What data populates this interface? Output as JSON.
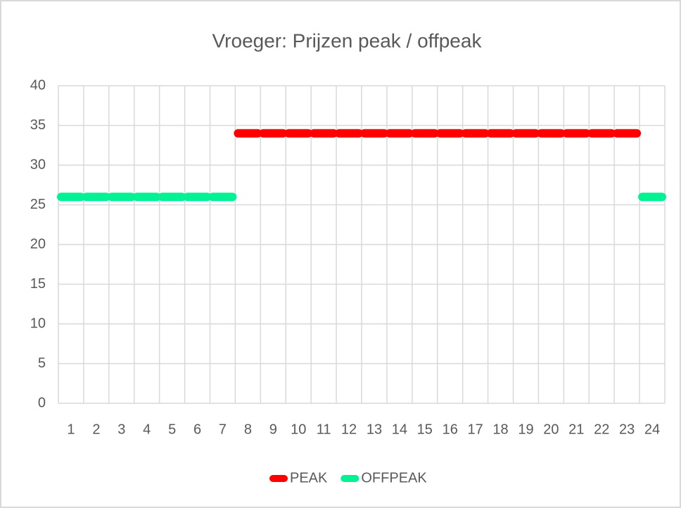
{
  "chart_data": {
    "type": "line",
    "title": "Vroeger: Prijzen peak / offpeak",
    "categories": [
      "1",
      "2",
      "3",
      "4",
      "5",
      "6",
      "7",
      "8",
      "9",
      "10",
      "11",
      "12",
      "13",
      "14",
      "15",
      "16",
      "17",
      "18",
      "19",
      "20",
      "21",
      "22",
      "23",
      "24"
    ],
    "series": [
      {
        "name": "PEAK",
        "color": "#ff0000",
        "values": [
          null,
          null,
          null,
          null,
          null,
          null,
          null,
          34,
          34,
          34,
          34,
          34,
          34,
          34,
          34,
          34,
          34,
          34,
          34,
          34,
          34,
          34,
          34,
          null
        ]
      },
      {
        "name": "OFFPEAK",
        "color": "#00f294",
        "values": [
          26,
          26,
          26,
          26,
          26,
          26,
          26,
          null,
          null,
          null,
          null,
          null,
          null,
          null,
          null,
          null,
          null,
          null,
          null,
          null,
          null,
          null,
          null,
          26
        ]
      }
    ],
    "ylim": [
      0,
      40
    ],
    "yticks": [
      0,
      5,
      10,
      15,
      20,
      25,
      30,
      35,
      40
    ],
    "grid": true,
    "legend": "bottom"
  }
}
